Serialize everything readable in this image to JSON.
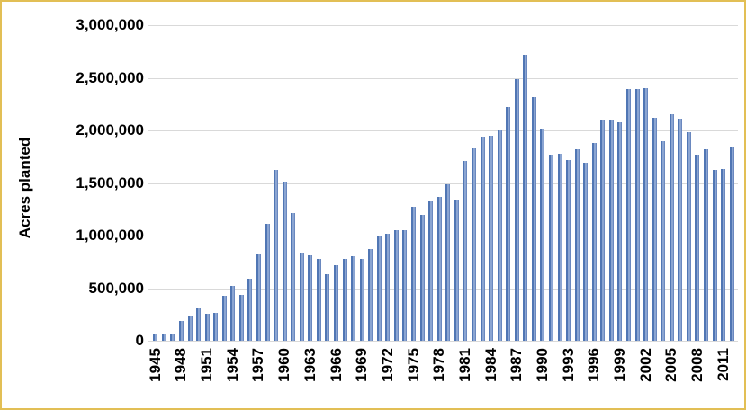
{
  "chart_data": {
    "type": "bar",
    "title": "",
    "xlabel": "",
    "ylabel": "Acres planted",
    "ylim": [
      0,
      3000000
    ],
    "y_tick_interval": 500000,
    "y_tick_labels": [
      "3,000,000",
      "2,500,000",
      "2,000,000",
      "1,500,000",
      "1,000,000",
      "500,000",
      "0"
    ],
    "x_tick_labels": [
      "1945",
      "1948",
      "1951",
      "1954",
      "1957",
      "1960",
      "1963",
      "1966",
      "1969",
      "1972",
      "1975",
      "1978",
      "1981",
      "1984",
      "1987",
      "1990",
      "1993",
      "1996",
      "1999",
      "2002",
      "2005",
      "2008",
      "2011"
    ],
    "x_label_every": 3,
    "grid": "horizontal",
    "legend": "none",
    "categories": [
      1945,
      1946,
      1947,
      1948,
      1949,
      1950,
      1951,
      1952,
      1953,
      1954,
      1955,
      1956,
      1957,
      1958,
      1959,
      1960,
      1961,
      1962,
      1963,
      1964,
      1965,
      1966,
      1967,
      1968,
      1969,
      1970,
      1971,
      1972,
      1973,
      1974,
      1975,
      1976,
      1977,
      1978,
      1979,
      1980,
      1981,
      1982,
      1983,
      1984,
      1985,
      1986,
      1987,
      1988,
      1989,
      1990,
      1991,
      1992,
      1993,
      1994,
      1995,
      1996,
      1997,
      1998,
      1999,
      2000,
      2001,
      2002,
      2003,
      2004,
      2005,
      2006,
      2007,
      2008,
      2009,
      2010,
      2011,
      2012
    ],
    "values": [
      60000,
      60000,
      70000,
      190000,
      235000,
      310000,
      260000,
      265000,
      430000,
      520000,
      435000,
      590000,
      820000,
      1110000,
      1620000,
      1510000,
      1210000,
      835000,
      815000,
      780000,
      630000,
      715000,
      780000,
      805000,
      780000,
      875000,
      1000000,
      1015000,
      1055000,
      1050000,
      1270000,
      1200000,
      1330000,
      1370000,
      1490000,
      1340000,
      1710000,
      1830000,
      1940000,
      1945000,
      2000000,
      2220000,
      2490000,
      2720000,
      2320000,
      2020000,
      1770000,
      1780000,
      1720000,
      1820000,
      1690000,
      1880000,
      2090000,
      2090000,
      2080000,
      2390000,
      2390000,
      2400000,
      2120000,
      1900000,
      2150000,
      2110000,
      1980000,
      1770000,
      1820000,
      1625000,
      1635000,
      1835000
    ]
  },
  "colors": {
    "bar_fill": "#8ba5d2",
    "bar_edge": "#5076b4",
    "gridline": "#d9d9d9",
    "frame_border": "#e2bf55",
    "text": "#000000",
    "background": "#ffffff"
  }
}
